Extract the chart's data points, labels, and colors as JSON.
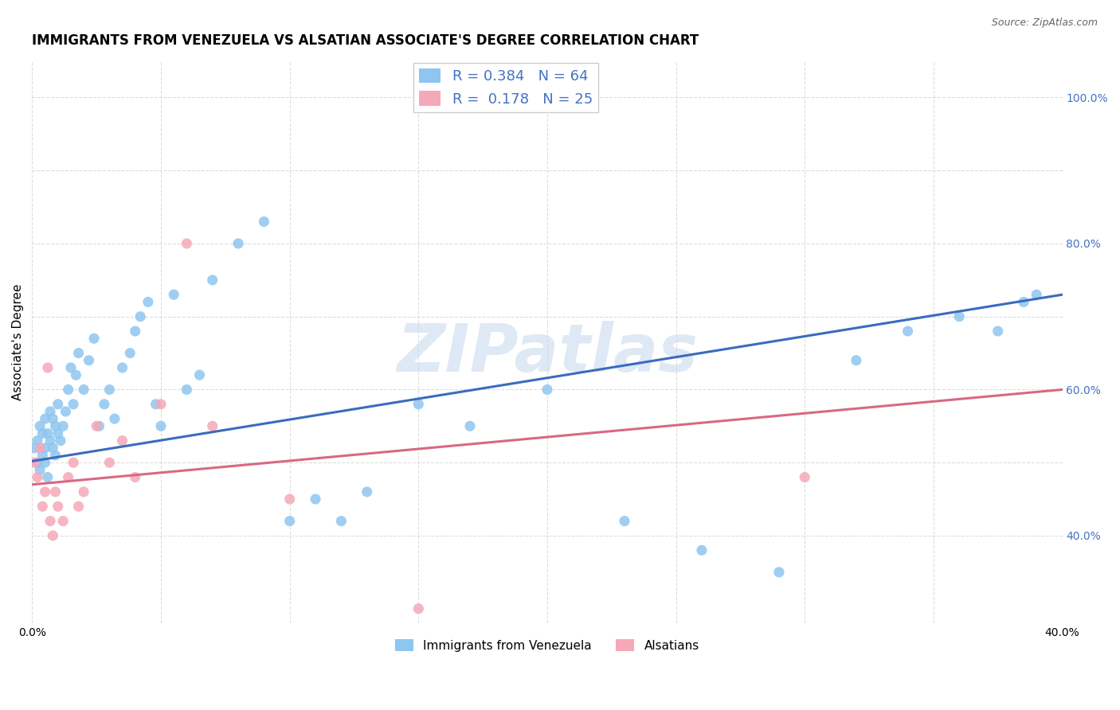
{
  "title": "IMMIGRANTS FROM VENEZUELA VS ALSATIAN ASSOCIATE'S DEGREE CORRELATION CHART",
  "source": "Source: ZipAtlas.com",
  "ylabel": "Associate's Degree",
  "xlim": [
    0.0,
    0.4
  ],
  "ylim": [
    0.28,
    1.05
  ],
  "blue_color": "#8EC6F0",
  "pink_color": "#F5A8B8",
  "blue_line_color": "#3A6BBF",
  "pink_line_color": "#D96882",
  "R_blue": 0.384,
  "N_blue": 64,
  "R_pink": 0.178,
  "N_pink": 25,
  "blue_x": [
    0.001,
    0.002,
    0.002,
    0.003,
    0.003,
    0.004,
    0.004,
    0.005,
    0.005,
    0.005,
    0.006,
    0.006,
    0.007,
    0.007,
    0.008,
    0.008,
    0.009,
    0.009,
    0.01,
    0.01,
    0.011,
    0.012,
    0.013,
    0.014,
    0.015,
    0.016,
    0.017,
    0.018,
    0.02,
    0.022,
    0.024,
    0.026,
    0.028,
    0.03,
    0.032,
    0.035,
    0.038,
    0.04,
    0.042,
    0.045,
    0.048,
    0.05,
    0.055,
    0.06,
    0.065,
    0.07,
    0.08,
    0.09,
    0.1,
    0.11,
    0.12,
    0.13,
    0.15,
    0.17,
    0.2,
    0.23,
    0.26,
    0.29,
    0.32,
    0.34,
    0.36,
    0.375,
    0.385,
    0.39
  ],
  "blue_y": [
    0.52,
    0.5,
    0.53,
    0.49,
    0.55,
    0.51,
    0.54,
    0.5,
    0.52,
    0.56,
    0.48,
    0.54,
    0.53,
    0.57,
    0.52,
    0.56,
    0.51,
    0.55,
    0.54,
    0.58,
    0.53,
    0.55,
    0.57,
    0.6,
    0.63,
    0.58,
    0.62,
    0.65,
    0.6,
    0.64,
    0.67,
    0.55,
    0.58,
    0.6,
    0.56,
    0.63,
    0.65,
    0.68,
    0.7,
    0.72,
    0.58,
    0.55,
    0.73,
    0.6,
    0.62,
    0.75,
    0.8,
    0.83,
    0.42,
    0.45,
    0.42,
    0.46,
    0.58,
    0.55,
    0.6,
    0.42,
    0.38,
    0.35,
    0.64,
    0.68,
    0.7,
    0.68,
    0.72,
    0.73
  ],
  "pink_x": [
    0.001,
    0.002,
    0.003,
    0.004,
    0.005,
    0.006,
    0.007,
    0.008,
    0.009,
    0.01,
    0.012,
    0.014,
    0.016,
    0.018,
    0.02,
    0.025,
    0.03,
    0.035,
    0.04,
    0.05,
    0.06,
    0.07,
    0.1,
    0.15,
    0.3
  ],
  "pink_y": [
    0.5,
    0.48,
    0.52,
    0.44,
    0.46,
    0.63,
    0.42,
    0.4,
    0.46,
    0.44,
    0.42,
    0.48,
    0.5,
    0.44,
    0.46,
    0.55,
    0.5,
    0.53,
    0.48,
    0.58,
    0.8,
    0.55,
    0.45,
    0.3,
    0.48
  ],
  "blue_trend_x0": 0.0,
  "blue_trend_y0": 0.502,
  "blue_trend_x1": 0.4,
  "blue_trend_y1": 0.73,
  "pink_trend_x0": 0.0,
  "pink_trend_y0": 0.47,
  "pink_trend_x1": 0.4,
  "pink_trend_y1": 0.6,
  "grid_color": "#DDDDDD",
  "background_color": "#FFFFFF",
  "title_fontsize": 12,
  "axis_label_fontsize": 11,
  "tick_fontsize": 10,
  "legend_label1": "Immigrants from Venezuela",
  "legend_label2": "Alsatians",
  "watermark": "ZIPatlas",
  "watermark_color": "#C5D8EE"
}
